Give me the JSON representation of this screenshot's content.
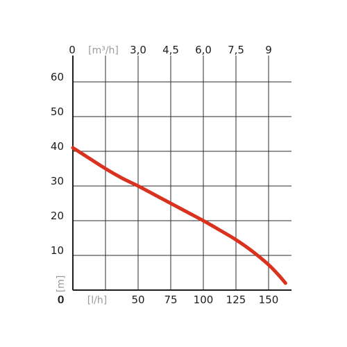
{
  "chart_data": {
    "type": "line",
    "title": "",
    "xlabel": "[l/h]",
    "x2label": "[m³/h]",
    "ylabel": "[m]",
    "xlim": [
      0,
      160
    ],
    "ylim": [
      0,
      70
    ],
    "x_ticks": [
      0,
      25,
      50,
      75,
      100,
      125,
      150
    ],
    "x_tick_labels": [
      "0",
      "",
      "50",
      "75",
      "100",
      "125",
      "150"
    ],
    "x2_tick_labels": [
      "0",
      "",
      "3,0",
      "4,5",
      "6,0",
      "7,5",
      "9"
    ],
    "y_ticks": [
      10,
      20,
      30,
      40,
      50,
      60
    ],
    "y_tick_labels": [
      "10",
      "20",
      "30",
      "40",
      "50",
      "60"
    ],
    "y_origin_label": "0",
    "grid": true,
    "series": [
      {
        "x": [
          0,
          12.5,
          25,
          37.5,
          50,
          62.5,
          75,
          87.5,
          100,
          112.5,
          125,
          137.5,
          150,
          157.5,
          163
        ],
        "y": [
          41,
          38,
          35,
          32.3,
          30,
          27.5,
          25,
          22.5,
          20,
          17.3,
          14.5,
          11.2,
          7.3,
          4.4,
          2
        ]
      }
    ],
    "colors": {
      "curve": "#d9321f",
      "unit_text": "#9a9a9a",
      "text": "#1c1c1c"
    }
  }
}
